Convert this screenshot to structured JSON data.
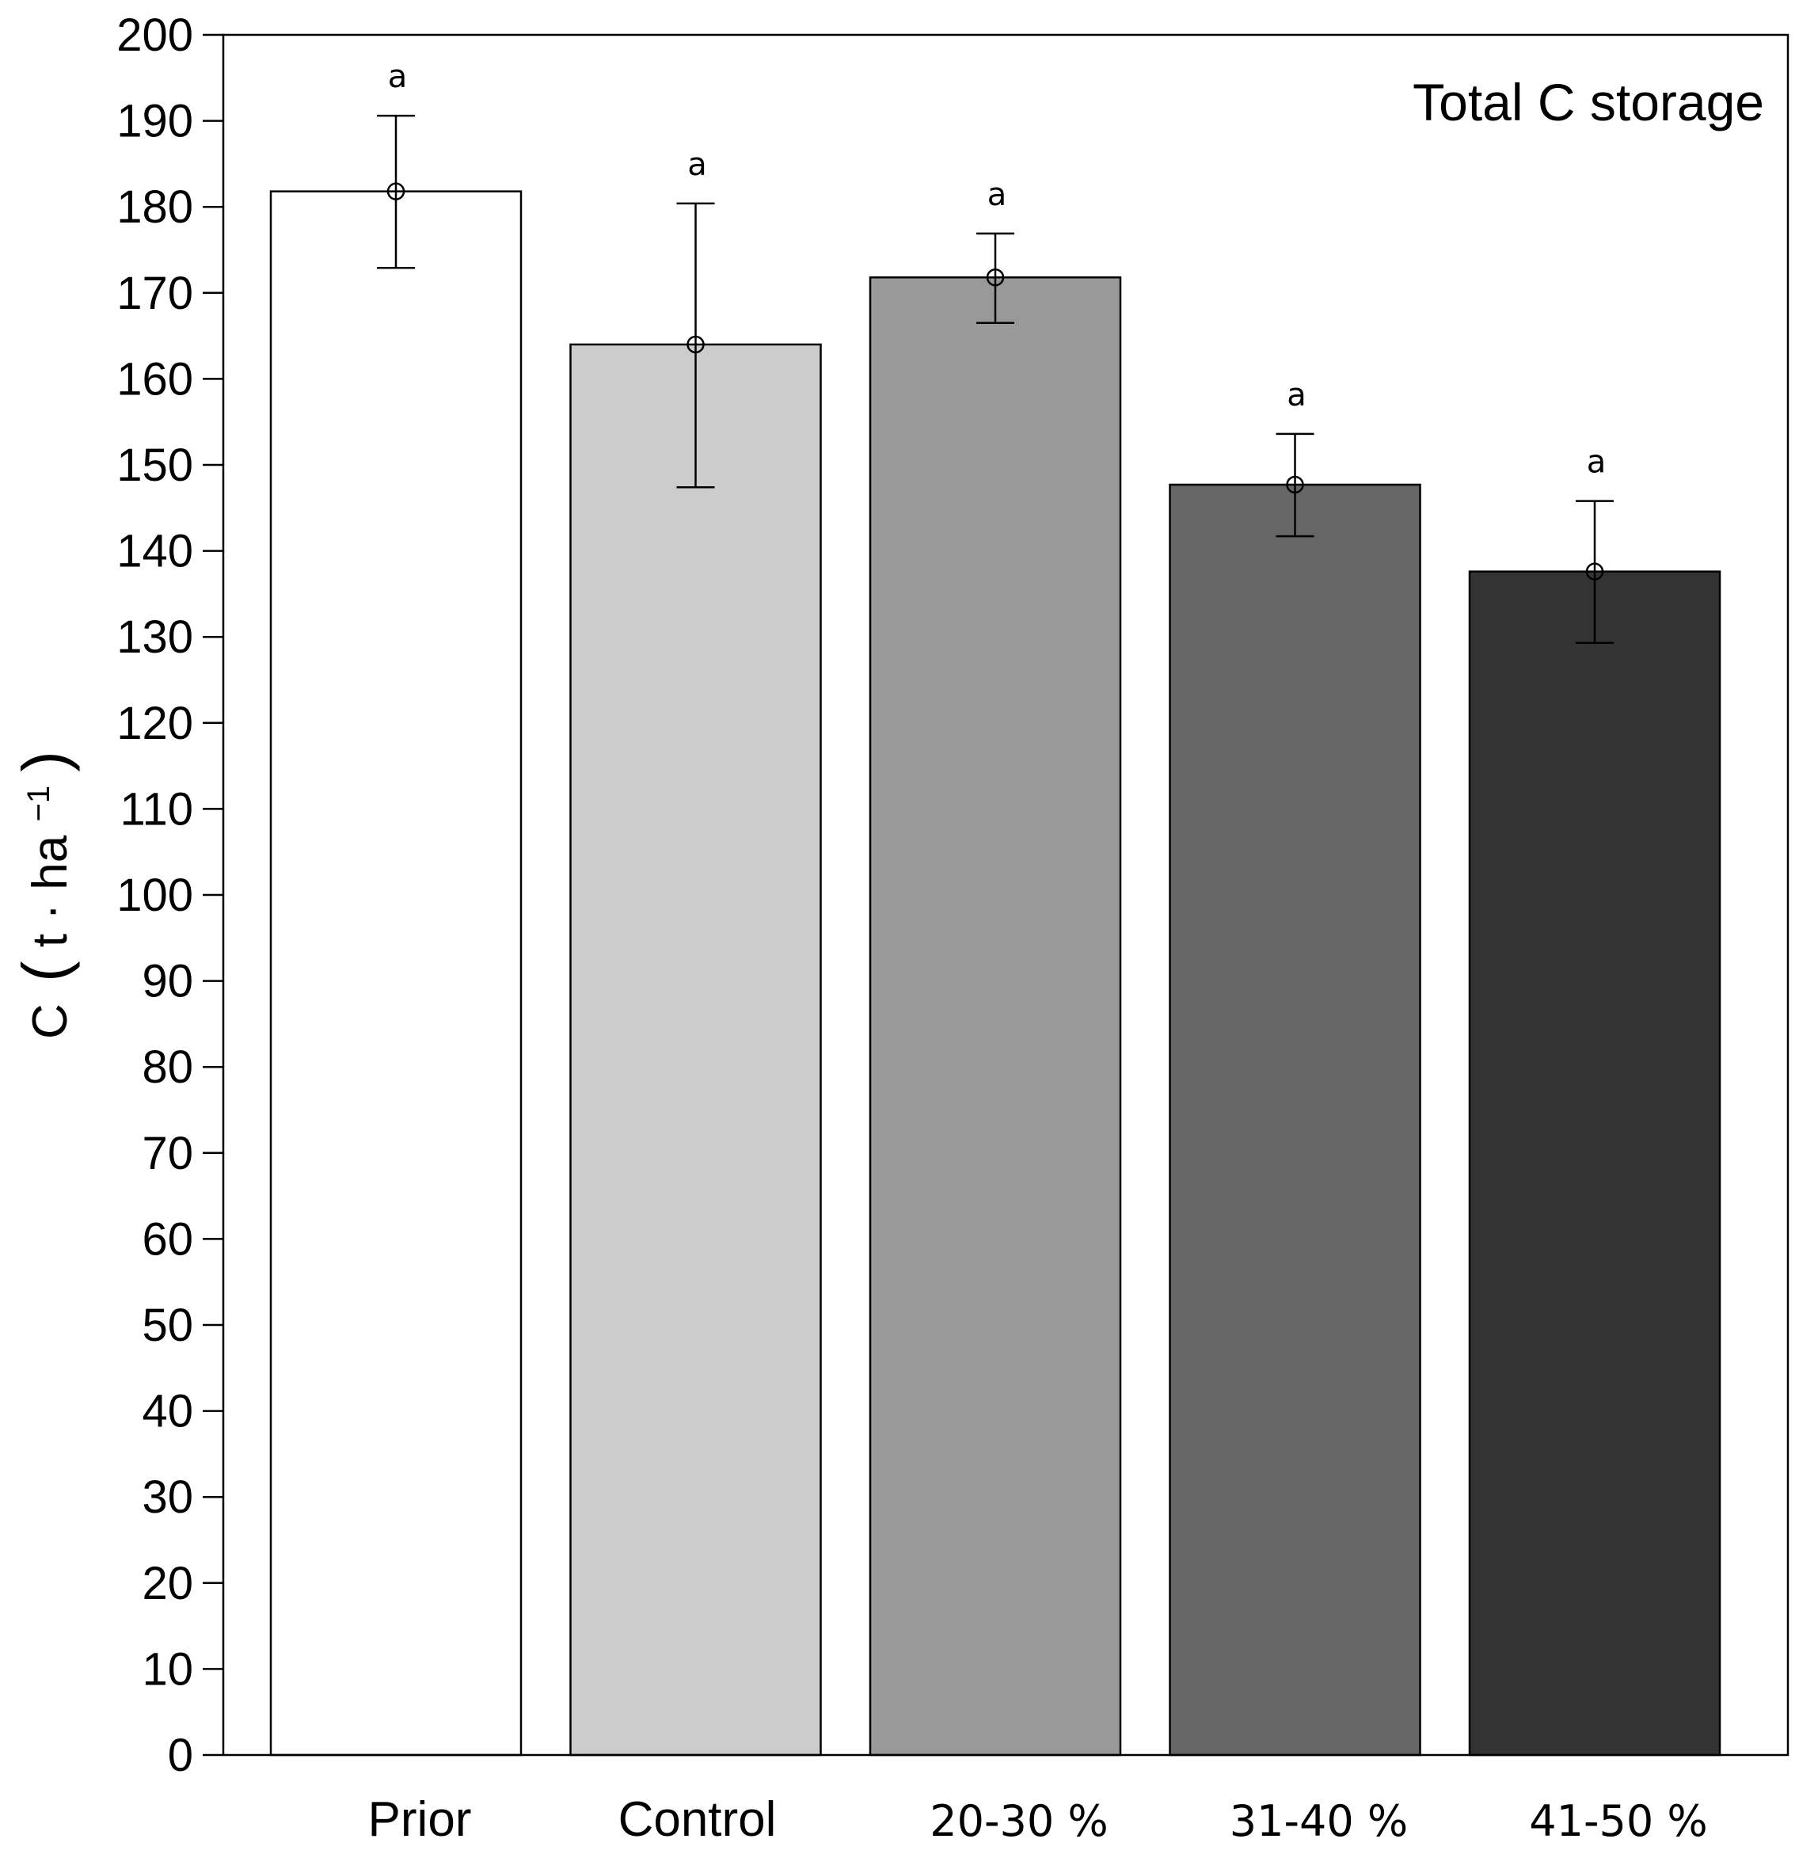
{
  "chart_data": {
    "type": "bar",
    "title": "Total C storage",
    "ylabel_main": "C",
    "ylabel_unit": "t · ha",
    "ylabel_exponent": "−1",
    "xlabel": "",
    "ylim": [
      0,
      200
    ],
    "yticks": [
      0,
      10,
      20,
      30,
      40,
      50,
      60,
      70,
      80,
      90,
      100,
      110,
      120,
      130,
      140,
      150,
      160,
      170,
      180,
      190,
      200
    ],
    "categories": [
      "Prior",
      "Control",
      "20-30 %",
      "31-40 %",
      "41-50 %"
    ],
    "values": [
      181.8,
      164.0,
      171.8,
      147.7,
      137.6
    ],
    "error_upper": [
      190.6,
      180.4,
      176.9,
      153.6,
      145.8
    ],
    "error_lower": [
      172.9,
      147.4,
      166.5,
      141.7,
      129.3
    ],
    "significance": [
      "a",
      "a",
      "a",
      "a",
      "a"
    ],
    "bar_colors": [
      "#ffffff",
      "#cccccc",
      "#999999",
      "#666666",
      "#333333"
    ],
    "grid": false
  }
}
